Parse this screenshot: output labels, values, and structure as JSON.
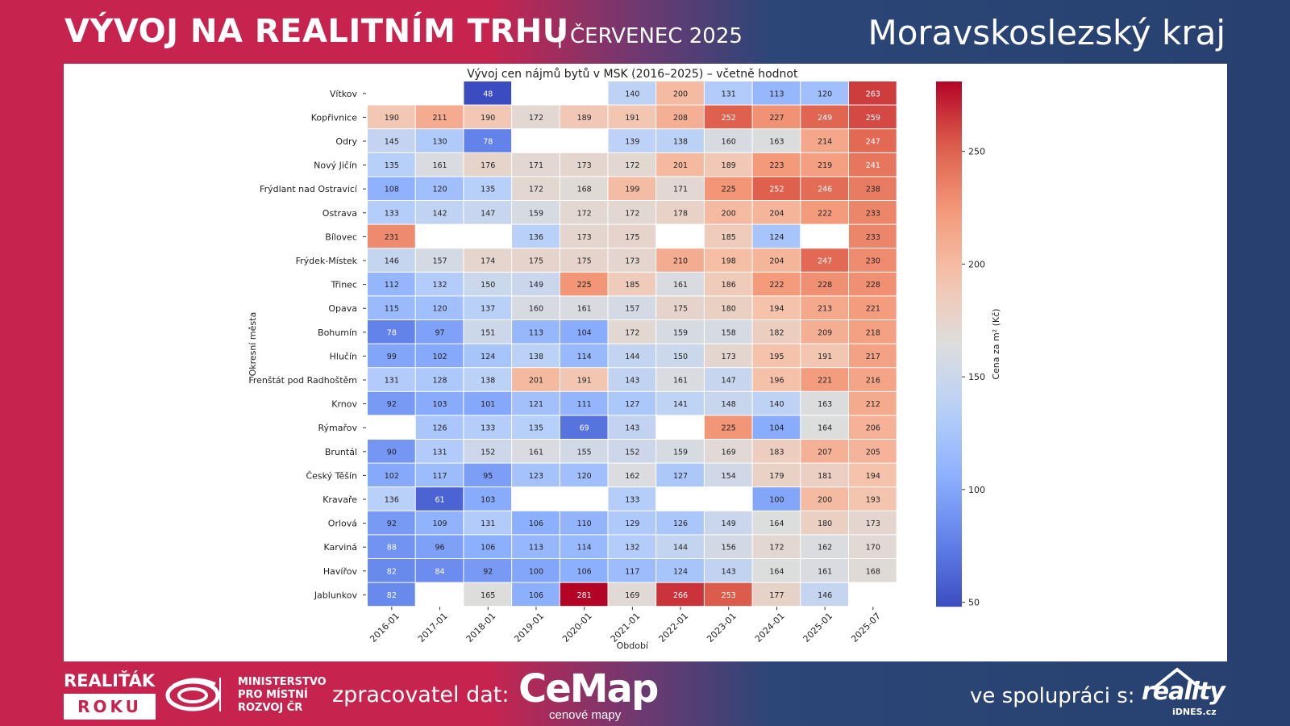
{
  "header": {
    "title": "VÝVOJ NA REALITNÍM TRHU",
    "period": "| ČERVENEC 2025",
    "region": "Moravskoslezský kraj"
  },
  "footer": {
    "realitak": "REALIŤÁK",
    "roku": "ROKU",
    "ministry_line1": "MINISTERSTVO",
    "ministry_line2": "PRO MÍSTNÍ",
    "ministry_line3": "ROZVOJ ČR",
    "processor_label": "zpracovatel dat:",
    "cemap_name": "CeMap",
    "cemap_sub": "cenové mapy",
    "partner_label": "ve spolupráci s:",
    "reality_name": "reality",
    "reality_sub": "iDNES.cz",
    "brand_red": "#c6244f",
    "brand_blue": "#27406f"
  },
  "chart_data": {
    "type": "heatmap",
    "title": "Vývoj cen nájmů bytů v MSK (2016–2025) – včetně hodnot",
    "xlabel": "Období",
    "ylabel": "Okresní města",
    "colorbar_label": "Cena za m² (Kč)",
    "colorbar_range": [
      48,
      281
    ],
    "colorbar_ticks": [
      50,
      100,
      150,
      200,
      250
    ],
    "colormap": "coolwarm",
    "columns": [
      "2016-01",
      "2017-01",
      "2018-01",
      "2019-01",
      "2020-01",
      "2021-01",
      "2022-01",
      "2023-01",
      "2024-01",
      "2025-01",
      "2025-07"
    ],
    "rows": [
      {
        "name": "Vítkov",
        "values": [
          null,
          null,
          48,
          null,
          null,
          140,
          200,
          131,
          113,
          120,
          263
        ]
      },
      {
        "name": "Kopřivnice",
        "values": [
          190,
          211,
          190,
          172,
          189,
          191,
          208,
          252,
          227,
          249,
          259
        ]
      },
      {
        "name": "Odry",
        "values": [
          145,
          130,
          78,
          null,
          null,
          139,
          138,
          160,
          163,
          214,
          247
        ]
      },
      {
        "name": "Nový Jičín",
        "values": [
          135,
          161,
          176,
          171,
          173,
          172,
          201,
          189,
          223,
          219,
          241
        ]
      },
      {
        "name": "Frýdlant nad Ostravicí",
        "values": [
          108,
          120,
          135,
          172,
          168,
          199,
          171,
          225,
          252,
          246,
          238
        ]
      },
      {
        "name": "Ostrava",
        "values": [
          133,
          142,
          147,
          159,
          172,
          172,
          178,
          200,
          204,
          222,
          233
        ]
      },
      {
        "name": "Bílovec",
        "values": [
          231,
          null,
          null,
          136,
          173,
          175,
          null,
          185,
          124,
          null,
          233
        ]
      },
      {
        "name": "Frýdek-Místek",
        "values": [
          146,
          157,
          174,
          175,
          175,
          173,
          210,
          198,
          204,
          247,
          230
        ]
      },
      {
        "name": "Třinec",
        "values": [
          112,
          132,
          150,
          149,
          225,
          185,
          161,
          186,
          222,
          228,
          228
        ]
      },
      {
        "name": "Opava",
        "values": [
          115,
          120,
          137,
          160,
          161,
          157,
          175,
          180,
          194,
          213,
          221
        ]
      },
      {
        "name": "Bohumín",
        "values": [
          78,
          97,
          151,
          113,
          104,
          172,
          159,
          158,
          182,
          209,
          218
        ]
      },
      {
        "name": "Hlučín",
        "values": [
          99,
          102,
          124,
          138,
          114,
          144,
          150,
          173,
          195,
          191,
          217
        ]
      },
      {
        "name": "Frenštát pod Radhoštěm",
        "values": [
          131,
          128,
          138,
          201,
          191,
          143,
          161,
          147,
          196,
          221,
          216
        ]
      },
      {
        "name": "Krnov",
        "values": [
          92,
          103,
          101,
          121,
          111,
          127,
          141,
          148,
          140,
          163,
          212
        ]
      },
      {
        "name": "Rýmařov",
        "values": [
          null,
          126,
          133,
          135,
          69,
          143,
          null,
          225,
          104,
          164,
          206
        ]
      },
      {
        "name": "Bruntál",
        "values": [
          90,
          131,
          152,
          161,
          155,
          152,
          159,
          169,
          183,
          207,
          205
        ]
      },
      {
        "name": "Český Těšín",
        "values": [
          102,
          117,
          95,
          123,
          120,
          162,
          127,
          154,
          179,
          181,
          194
        ]
      },
      {
        "name": "Kravaře",
        "values": [
          136,
          61,
          103,
          null,
          null,
          133,
          null,
          null,
          100,
          200,
          193
        ]
      },
      {
        "name": "Orlová",
        "values": [
          92,
          109,
          131,
          106,
          110,
          129,
          126,
          149,
          164,
          180,
          173
        ]
      },
      {
        "name": "Karviná",
        "values": [
          88,
          96,
          106,
          113,
          114,
          132,
          144,
          156,
          172,
          162,
          170
        ]
      },
      {
        "name": "Havířov",
        "values": [
          82,
          84,
          92,
          100,
          106,
          117,
          124,
          143,
          164,
          161,
          168
        ]
      },
      {
        "name": "Jablunkov",
        "values": [
          82,
          null,
          165,
          106,
          281,
          169,
          266,
          253,
          177,
          146,
          null
        ]
      }
    ]
  }
}
